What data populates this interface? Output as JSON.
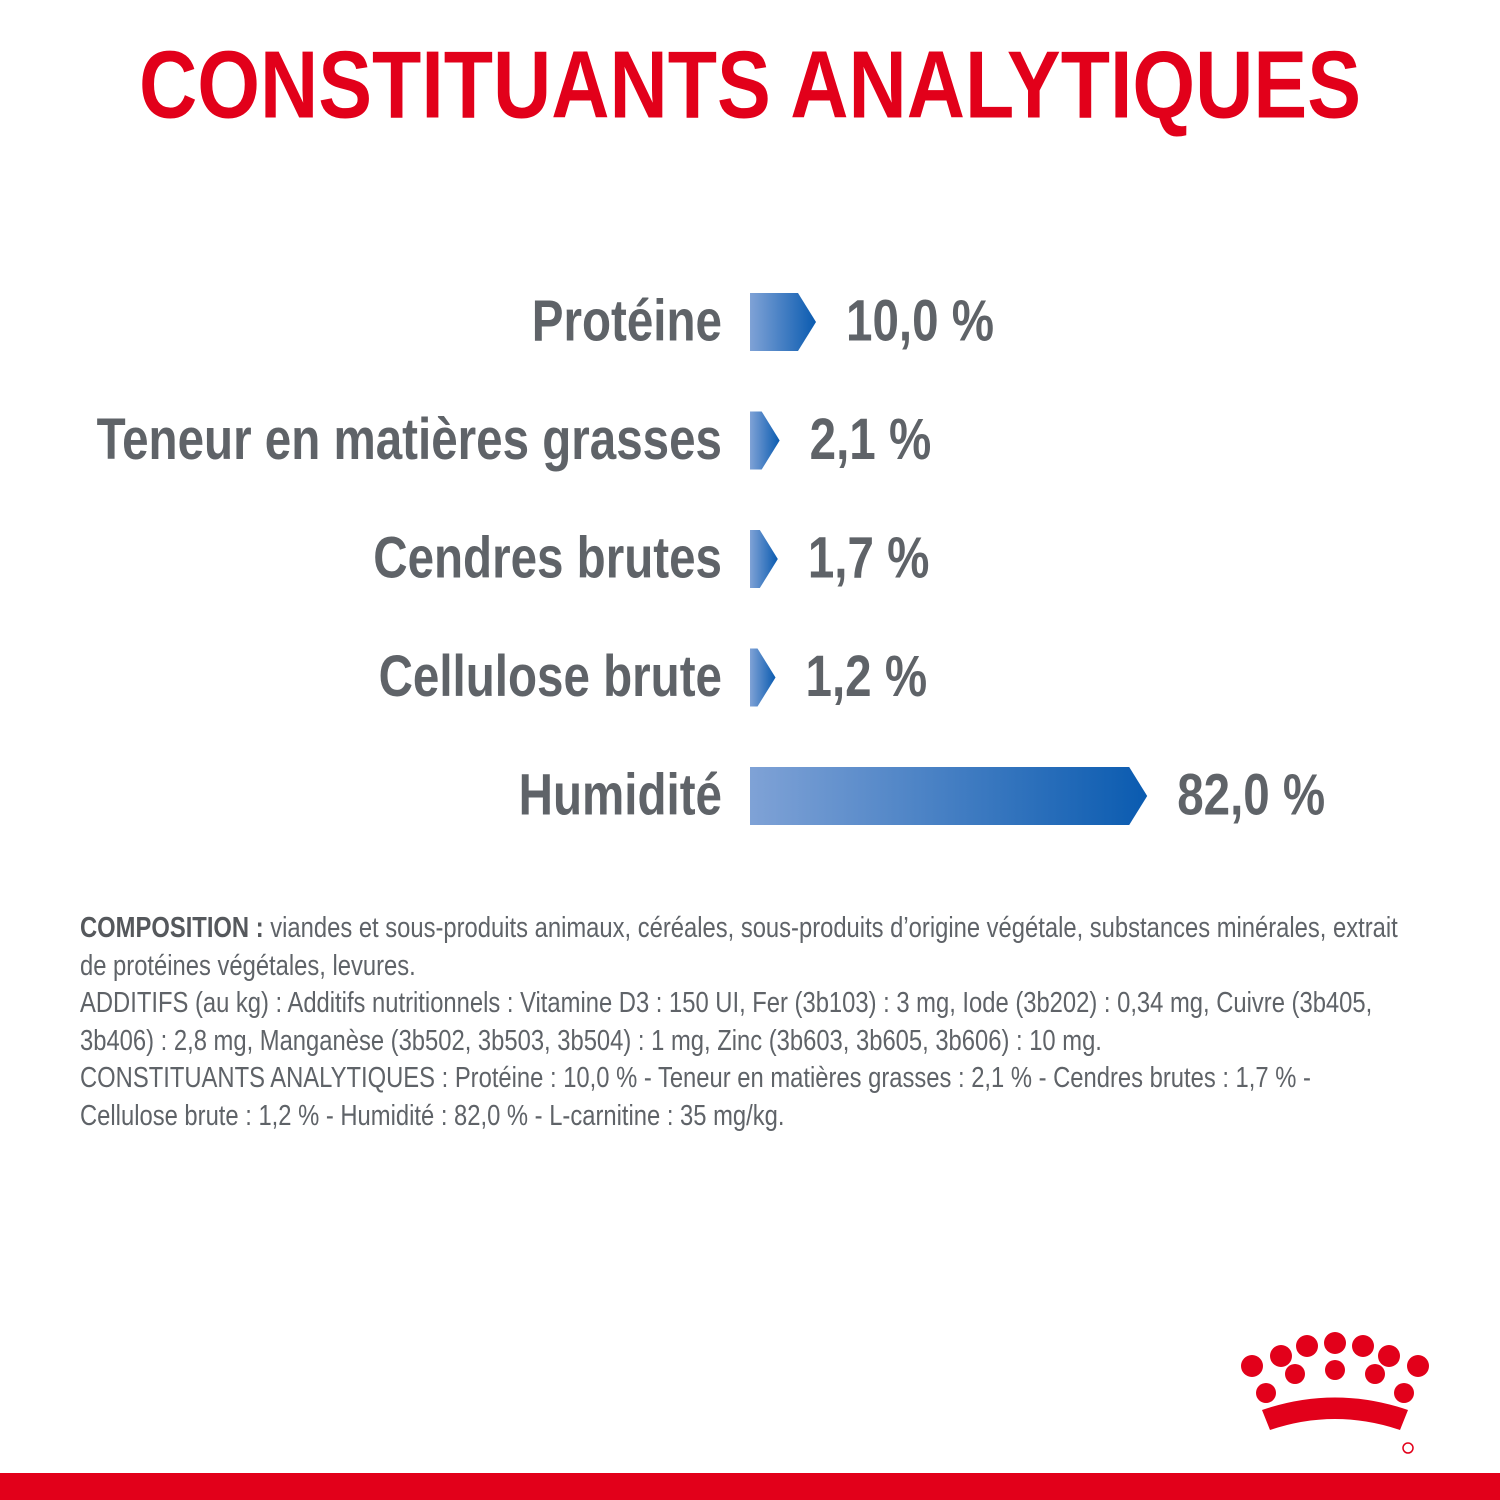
{
  "chart_data": {
    "type": "bar",
    "orientation": "horizontal",
    "title": "CONSTITUANTS ANALYTIQUES",
    "categories": [
      "Protéine",
      "Teneur en matières grasses",
      "Cendres brutes",
      "Cellulose brute",
      "Humidité"
    ],
    "values": [
      10.0,
      2.1,
      1.7,
      1.2,
      82.0
    ],
    "value_labels": [
      "10,0 %",
      "2,1 %",
      "1,7 %",
      "1,2 %",
      "82,0 %"
    ],
    "colors": [
      "#7fa2d6",
      "#0a5bb0"
    ]
  },
  "composition": {
    "label": "COMPOSITION :",
    "text": "viandes et sous-produits animaux, céréales, sous-produits d’origine végétale, substances minérales, extrait de protéines végétales, levures.",
    "additives": "ADDITIFS (au kg) : Additifs nutritionnels : Vitamine D3 : 150 UI, Fer (3b103) : 3 mg, Iode (3b202) : 0,34 mg, Cuivre (3b405, 3b406) : 2,8 mg, Manganèse (3b502, 3b503, 3b504) : 1 mg, Zinc (3b603, 3b605, 3b606) : 10 mg.",
    "analytical": "CONSTITUANTS ANALYTIQUES : Protéine : 10,0 % - Teneur en matières grasses : 2,1 % - Cendres brutes : 1,7 % - Cellulose brute : 1,2 % - Humidité : 82,0 % - L-carnitine : 35 mg/kg."
  }
}
